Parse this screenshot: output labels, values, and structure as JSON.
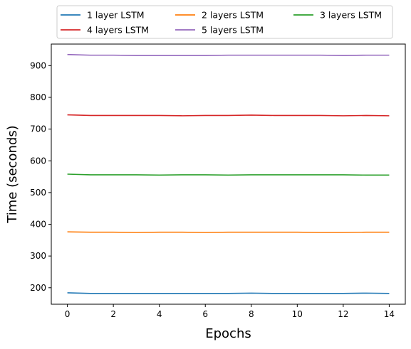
{
  "chart_data": {
    "type": "line",
    "title": "",
    "xlabel": "Epochs",
    "ylabel": "Time (seconds)",
    "xlim": [
      -0.7,
      14.7
    ],
    "ylim": [
      148,
      968
    ],
    "xticks": [
      0,
      2,
      4,
      6,
      8,
      10,
      12,
      14
    ],
    "xtick_labels": [
      "0",
      "2",
      "4",
      "6",
      "8",
      "10",
      "12",
      "14"
    ],
    "yticks": [
      200,
      300,
      400,
      500,
      600,
      700,
      800,
      900
    ],
    "ytick_labels": [
      "200",
      "300",
      "400",
      "500",
      "600",
      "700",
      "800",
      "900"
    ],
    "grid": false,
    "legend_placement": "top-center, above plot, 3 columns",
    "x": [
      0,
      1,
      2,
      3,
      4,
      5,
      6,
      7,
      8,
      9,
      10,
      11,
      12,
      13,
      14
    ],
    "series": [
      {
        "name": "1 layer LSTM",
        "color": "#1f77b4",
        "values": [
          184,
          182,
          182,
          182,
          182,
          182,
          182,
          182,
          183,
          182,
          182,
          182,
          182,
          183,
          182
        ]
      },
      {
        "name": "2 layers LSTM",
        "color": "#ff7f0e",
        "values": [
          376,
          375,
          375,
          374,
          375,
          375,
          374,
          375,
          375,
          375,
          375,
          374,
          374,
          375,
          375
        ]
      },
      {
        "name": "3 layers LSTM",
        "color": "#2ca02c",
        "values": [
          558,
          556,
          556,
          556,
          555,
          556,
          556,
          555,
          556,
          556,
          556,
          556,
          556,
          555,
          555
        ]
      },
      {
        "name": "4 layers LSTM",
        "color": "#d62728",
        "values": [
          745,
          743,
          743,
          743,
          743,
          742,
          743,
          743,
          744,
          743,
          743,
          743,
          742,
          743,
          742
        ]
      },
      {
        "name": "5 layers LSTM",
        "color": "#9467bd",
        "values": [
          935,
          933,
          933,
          932,
          932,
          932,
          932,
          933,
          933,
          933,
          933,
          933,
          932,
          933,
          933
        ]
      }
    ]
  }
}
